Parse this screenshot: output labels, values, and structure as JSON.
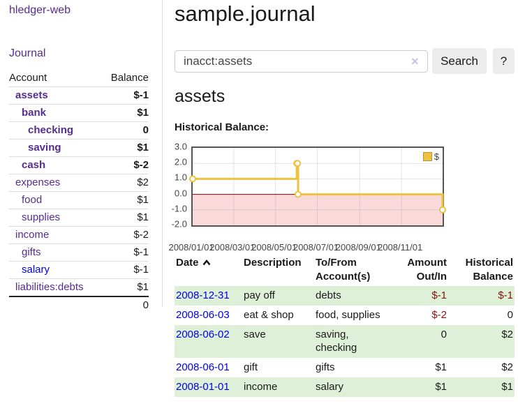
{
  "app": {
    "brand": "hledger-web"
  },
  "nav": {
    "journal": "Journal"
  },
  "sidebar": {
    "columns": {
      "account": "Account",
      "balance": "Balance"
    },
    "accounts": [
      {
        "name": "assets",
        "indent": 0,
        "bold": true,
        "balance": "$-1",
        "balance_style": "neg-strong"
      },
      {
        "name": "bank",
        "indent": 1,
        "bold": true,
        "balance": "$1",
        "balance_style": ""
      },
      {
        "name": "checking",
        "indent": 2,
        "bold": true,
        "balance": "0",
        "balance_style": ""
      },
      {
        "name": "saving",
        "indent": 2,
        "bold": true,
        "balance": "$1",
        "balance_style": ""
      },
      {
        "name": "cash",
        "indent": 1,
        "bold": true,
        "balance": "$-2",
        "balance_style": "neg-strong"
      },
      {
        "name": "expenses",
        "indent": 0,
        "bold": false,
        "balance": "$2",
        "balance_style": ""
      },
      {
        "name": "food",
        "indent": 1,
        "bold": false,
        "balance": "$1",
        "balance_style": ""
      },
      {
        "name": "supplies",
        "indent": 1,
        "bold": false,
        "balance": "$1",
        "balance_style": ""
      },
      {
        "name": "income",
        "indent": 0,
        "bold": false,
        "balance": "$-2",
        "balance_style": "neg-soft"
      },
      {
        "name": "gifts",
        "indent": 1,
        "bold": false,
        "balance": "$-1",
        "balance_style": "neg-soft"
      },
      {
        "name": "salary",
        "indent": 1,
        "bold": false,
        "balance": "$-1",
        "balance_style": "neg-soft",
        "link_color": "blue"
      },
      {
        "name": "liabilities:debts",
        "indent": 0,
        "bold": false,
        "balance": "$1",
        "balance_style": ""
      }
    ],
    "total": "0"
  },
  "header": {
    "title": "sample.journal"
  },
  "search": {
    "value": "inacct:assets",
    "clear": "×",
    "search_button": "Search",
    "help_button": "?"
  },
  "account_page": {
    "heading": "assets",
    "chart_label": "Historical Balance:"
  },
  "chart_data": {
    "type": "line",
    "step": true,
    "title": "Historical Balance",
    "legend": [
      {
        "label": "$",
        "color": "#edc240"
      }
    ],
    "legend_position": "top-right",
    "x_range": [
      "2008-01-01",
      "2008-12-31"
    ],
    "ylim": [
      -2,
      3
    ],
    "yticks": [
      3.0,
      2.0,
      1.0,
      0.0,
      -1.0,
      -2.0
    ],
    "ytick_labels": [
      "3.0",
      "2.0",
      "1.0",
      "0.0",
      "-1.0",
      "-2.0"
    ],
    "xticks": [
      "2008/01/01",
      "2008/03/01",
      "2008/05/01",
      "2008/07/01",
      "2008/09/01",
      "2008/11/01"
    ],
    "series": [
      {
        "name": "$",
        "color": "#edc240",
        "points": [
          {
            "x": "2008-01-01",
            "y": 1
          },
          {
            "x": "2008-06-01",
            "y": 2
          },
          {
            "x": "2008-06-02",
            "y": 2
          },
          {
            "x": "2008-06-03",
            "y": 0
          },
          {
            "x": "2008-12-31",
            "y": -1
          }
        ]
      }
    ],
    "grid": true,
    "negative_area_color": "#f9d9d9",
    "zero_line_color": "#800000"
  },
  "register": {
    "headers": [
      {
        "label": "Date",
        "sort": "asc",
        "align": "left"
      },
      {
        "label": "Description",
        "align": "left"
      },
      {
        "label": "To/From Account(s)",
        "align": "left"
      },
      {
        "label": "Amount Out/In",
        "align": "right"
      },
      {
        "label": "Historical Balance",
        "align": "right"
      }
    ],
    "rows": [
      {
        "date": "2008-12-31",
        "description": "pay off",
        "accounts": "debts",
        "amount": "$-1",
        "amount_negative": true,
        "balance": "$-1",
        "balance_negative": true
      },
      {
        "date": "2008-06-03",
        "description": "eat & shop",
        "accounts": "food, supplies",
        "amount": "$-2",
        "amount_negative": true,
        "balance": "0",
        "balance_negative": false
      },
      {
        "date": "2008-06-02",
        "description": "save",
        "accounts": "saving, checking",
        "amount": "0",
        "amount_negative": false,
        "balance": "$2",
        "balance_negative": false
      },
      {
        "date": "2008-06-01",
        "description": "gift",
        "accounts": "gifts",
        "amount": "$1",
        "amount_negative": false,
        "balance": "$2",
        "balance_negative": false
      },
      {
        "date": "2008-01-01",
        "description": "income",
        "accounts": "salary",
        "amount": "$1",
        "amount_negative": false,
        "balance": "$1",
        "balance_negative": false
      }
    ]
  },
  "colors": {
    "accent_purple": "#552d90",
    "link_blue": "#0000ee",
    "negative_strong": "#8b0d0d",
    "negative_soft": "#bf7373",
    "stripe_green": "#dff0d8",
    "series_gold": "#edc240",
    "zero_line": "#800000",
    "negative_area": "#f9d9d9",
    "chart_border": "#545454"
  }
}
